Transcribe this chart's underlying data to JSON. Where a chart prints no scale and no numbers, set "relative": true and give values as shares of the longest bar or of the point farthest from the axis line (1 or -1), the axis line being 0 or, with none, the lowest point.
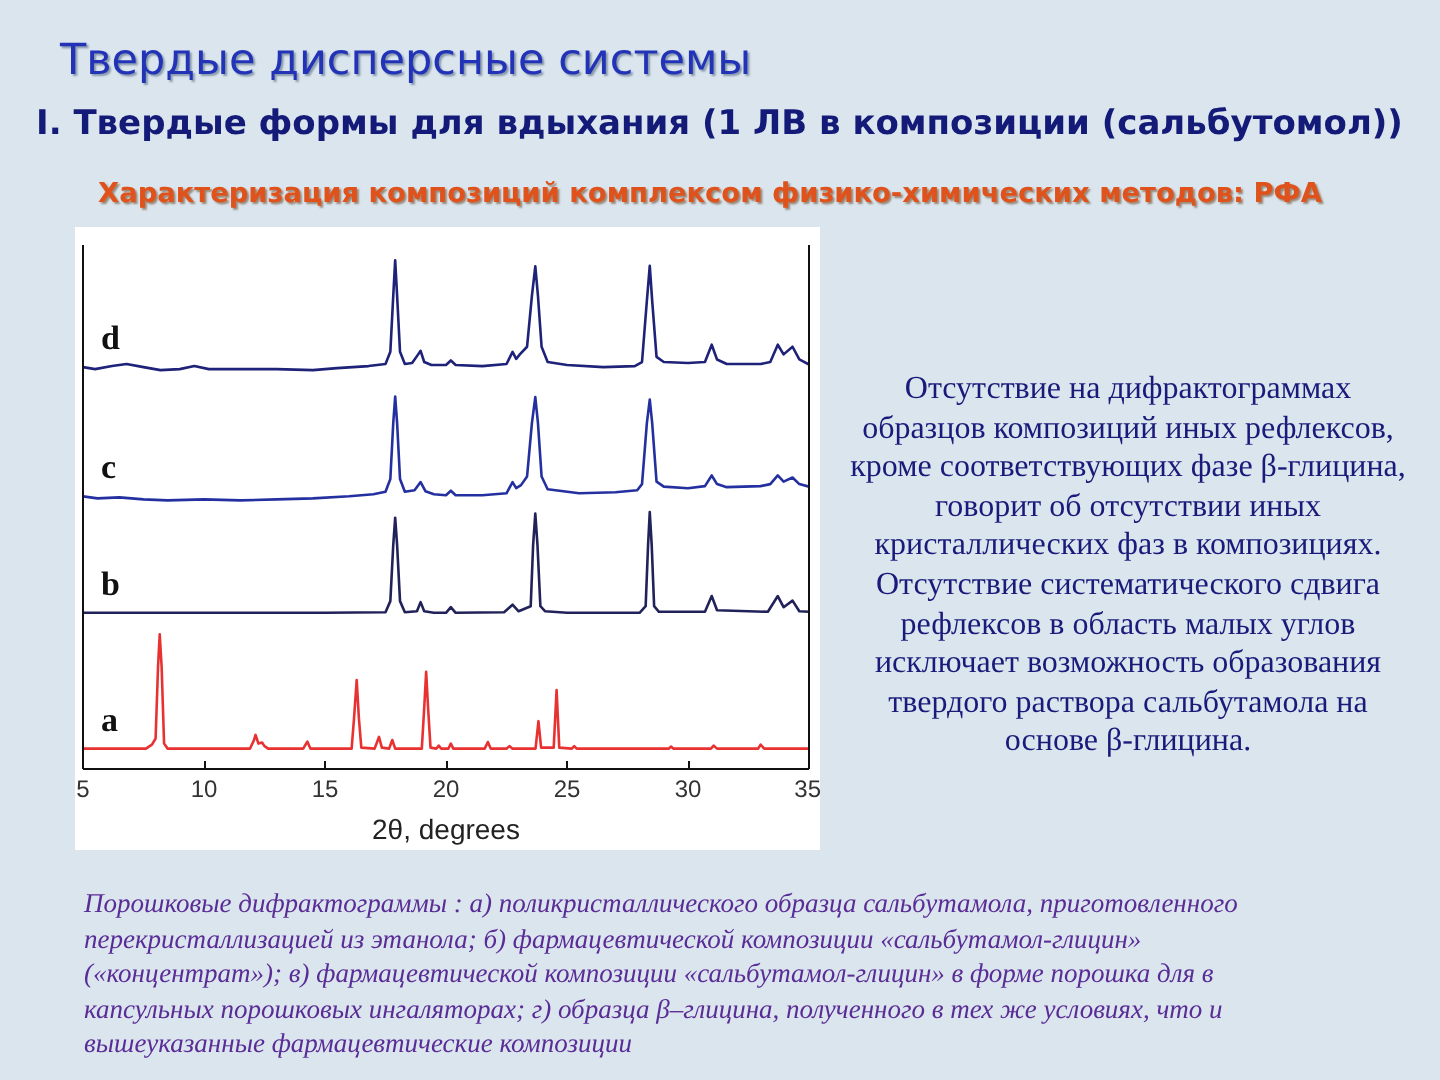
{
  "chart_data": {
    "type": "line",
    "title": "Твердые дисперсные системы",
    "subtitle": "I. Твердые формы для вдыхания (1 ЛВ в композиции (сальбутомол))",
    "annotations": [
      "Характеризация композиций комплексом физико-химических методов: РФА",
      "Отсутствие на дифрактограммах образцов композиций иных рефлексов, кроме соответствующих фазе β-глицина, говорит об отсутствии иных кристаллических фаз в композициях. Отсутствие систематического сдвига рефлексов в область малых углов исключает возможность образования твердого раствора сальбутамола на основе β-глицина.",
      "Порошковые дифрактограммы : а) поликристаллического образца сальбутамола, приготовленного перекристаллизацией из этанола; б) фармацевтической композиции «сальбутамол-глицин» («концентрат»); в) фармацевтической композиции «сальбутамол-глицин» в форме порошка для в капсульных порошковых ингаляторах; г) образца β–глицина, полученного в тех же условиях, что и вышеуказанные фармацевтические композиции"
    ],
    "xlabel": "2θ, degrees",
    "xlim": [
      5,
      35
    ],
    "xticks": [
      5,
      10,
      15,
      20,
      25,
      30,
      35
    ],
    "relative": true,
    "grid": false,
    "legend": false,
    "series": [
      {
        "name": "a",
        "color": "#e83232",
        "x": [
          5.0,
          7.6,
          7.85,
          8.0,
          8.1,
          8.17,
          8.25,
          8.35,
          8.5,
          11.9,
          12.05,
          12.13,
          12.25,
          12.4,
          12.5,
          12.65,
          14.1,
          14.27,
          14.4,
          16.1,
          16.2,
          16.31,
          16.4,
          16.5,
          17.05,
          17.23,
          17.35,
          17.65,
          17.78,
          17.9,
          19.0,
          19.1,
          19.18,
          19.26,
          19.36,
          19.6,
          19.7,
          19.8,
          20.1,
          20.2,
          20.3,
          21.6,
          21.73,
          21.85,
          22.5,
          22.62,
          22.75,
          23.7,
          23.82,
          23.93,
          24.45,
          24.57,
          24.68,
          25.2,
          25.3,
          25.4,
          29.2,
          29.3,
          29.4,
          30.95,
          31.06,
          31.2,
          32.9,
          33.0,
          33.15,
          35.0
        ],
        "values": [
          0.04,
          0.04,
          0.048,
          0.06,
          0.2,
          0.265,
          0.2,
          0.05,
          0.04,
          0.04,
          0.055,
          0.067,
          0.05,
          0.052,
          0.045,
          0.04,
          0.04,
          0.054,
          0.04,
          0.04,
          0.1,
          0.175,
          0.1,
          0.042,
          0.04,
          0.063,
          0.042,
          0.04,
          0.057,
          0.04,
          0.04,
          0.12,
          0.191,
          0.12,
          0.042,
          0.04,
          0.046,
          0.04,
          0.04,
          0.05,
          0.04,
          0.04,
          0.053,
          0.04,
          0.04,
          0.045,
          0.04,
          0.04,
          0.094,
          0.042,
          0.042,
          0.155,
          0.042,
          0.04,
          0.045,
          0.04,
          0.04,
          0.044,
          0.04,
          0.04,
          0.046,
          0.04,
          0.04,
          0.048,
          0.04,
          0.04
        ]
      },
      {
        "name": "b",
        "color": "#22225a",
        "x": [
          5.0,
          10.0,
          15.0,
          17.5,
          17.7,
          17.82,
          17.9,
          17.98,
          18.1,
          18.3,
          18.8,
          18.95,
          19.1,
          19.5,
          20.0,
          20.2,
          20.4,
          22.4,
          22.75,
          23.0,
          23.5,
          23.6,
          23.69,
          23.78,
          23.9,
          24.1,
          25.0,
          28.0,
          28.25,
          28.35,
          28.42,
          28.5,
          28.6,
          28.8,
          30.7,
          30.98,
          31.2,
          33.3,
          33.71,
          33.95,
          34.32,
          34.6,
          35.0
        ],
        "values": [
          0.307,
          0.307,
          0.307,
          0.308,
          0.33,
          0.44,
          0.494,
          0.44,
          0.33,
          0.308,
          0.31,
          0.328,
          0.31,
          0.307,
          0.307,
          0.318,
          0.307,
          0.308,
          0.323,
          0.31,
          0.32,
          0.44,
          0.502,
          0.44,
          0.32,
          0.31,
          0.307,
          0.307,
          0.32,
          0.44,
          0.505,
          0.44,
          0.32,
          0.309,
          0.309,
          0.34,
          0.312,
          0.309,
          0.34,
          0.318,
          0.331,
          0.31,
          0.309
        ]
      },
      {
        "name": "c",
        "color": "#2430a0",
        "x": [
          5.0,
          5.6,
          6.5,
          7.5,
          8.5,
          10.0,
          11.5,
          13.0,
          14.5,
          16.0,
          17.0,
          17.5,
          17.7,
          17.82,
          17.9,
          17.98,
          18.1,
          18.3,
          18.7,
          18.95,
          19.15,
          19.5,
          20.0,
          20.2,
          20.4,
          21.5,
          22.5,
          22.75,
          22.9,
          23.1,
          23.35,
          23.55,
          23.69,
          23.8,
          23.95,
          24.2,
          25.5,
          27.0,
          27.9,
          28.1,
          28.3,
          28.42,
          28.52,
          28.7,
          29.0,
          30.0,
          30.7,
          30.98,
          31.2,
          31.6,
          33.0,
          33.4,
          33.71,
          33.95,
          34.32,
          34.6,
          35.0
        ],
        "values": [
          0.536,
          0.532,
          0.534,
          0.53,
          0.528,
          0.53,
          0.528,
          0.53,
          0.532,
          0.536,
          0.54,
          0.545,
          0.57,
          0.68,
          0.732,
          0.68,
          0.57,
          0.545,
          0.548,
          0.564,
          0.546,
          0.54,
          0.538,
          0.547,
          0.538,
          0.538,
          0.542,
          0.564,
          0.552,
          0.558,
          0.575,
          0.68,
          0.731,
          0.68,
          0.575,
          0.55,
          0.542,
          0.544,
          0.548,
          0.56,
          0.68,
          0.726,
          0.68,
          0.565,
          0.555,
          0.552,
          0.556,
          0.577,
          0.56,
          0.554,
          0.556,
          0.56,
          0.577,
          0.565,
          0.573,
          0.56,
          0.555
        ]
      },
      {
        "name": "d",
        "color": "#1e2278",
        "x": [
          5.0,
          5.5,
          6.2,
          6.8,
          7.5,
          8.2,
          9.0,
          9.6,
          10.2,
          11.5,
          13.0,
          14.5,
          15.5,
          16.8,
          17.5,
          17.7,
          17.82,
          17.9,
          17.98,
          18.1,
          18.3,
          18.6,
          18.85,
          18.95,
          19.1,
          19.4,
          20.0,
          20.2,
          20.4,
          21.5,
          22.5,
          22.75,
          22.9,
          23.05,
          23.35,
          23.55,
          23.69,
          23.8,
          23.95,
          24.2,
          25.0,
          26.5,
          27.8,
          28.1,
          28.3,
          28.42,
          28.52,
          28.7,
          29.0,
          30.0,
          30.7,
          30.98,
          31.2,
          31.6,
          33.0,
          33.4,
          33.71,
          33.95,
          34.32,
          34.6,
          35.0
        ],
        "values": [
          0.79,
          0.786,
          0.792,
          0.796,
          0.79,
          0.784,
          0.786,
          0.792,
          0.786,
          0.786,
          0.786,
          0.784,
          0.788,
          0.792,
          0.796,
          0.82,
          0.93,
          1.0,
          0.93,
          0.82,
          0.796,
          0.798,
          0.815,
          0.822,
          0.8,
          0.794,
          0.794,
          0.803,
          0.794,
          0.792,
          0.796,
          0.82,
          0.806,
          0.815,
          0.83,
          0.93,
          0.988,
          0.93,
          0.83,
          0.8,
          0.794,
          0.79,
          0.792,
          0.8,
          0.92,
          0.989,
          0.92,
          0.81,
          0.8,
          0.798,
          0.8,
          0.834,
          0.805,
          0.796,
          0.796,
          0.8,
          0.834,
          0.815,
          0.83,
          0.805,
          0.795
        ]
      }
    ]
  }
}
